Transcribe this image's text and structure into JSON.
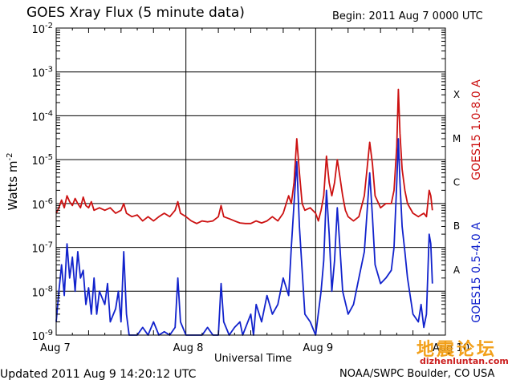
{
  "header": {
    "title": "GOES Xray Flux (5 minute data)",
    "begin": "Begin:  2011 Aug 7 0000 UTC"
  },
  "footer": {
    "updated": "Updated 2011 Aug  9 14:20:12 UTC",
    "source": "NOAA/SWPC Boulder, CO USA"
  },
  "watermark": {
    "chinese": "地震论坛",
    "url": "dizhenluntan.com"
  },
  "chart_data": {
    "type": "line",
    "title": "GOES Xray Flux (5 minute data)",
    "xlabel": "Universal Time",
    "ylabel": "Watts m-2",
    "y_scale": "log",
    "ylim": [
      1e-09,
      0.01
    ],
    "xlim_hours": [
      0,
      72
    ],
    "x_tick_labels": [
      "Aug 7",
      "Aug 8",
      "Aug 9",
      "Aug 10"
    ],
    "y_tick_labels": [
      {
        "base": "10",
        "exp": "-9"
      },
      {
        "base": "10",
        "exp": "-8"
      },
      {
        "base": "10",
        "exp": "-7"
      },
      {
        "base": "10",
        "exp": "-6"
      },
      {
        "base": "10",
        "exp": "-5"
      },
      {
        "base": "10",
        "exp": "-4"
      },
      {
        "base": "10",
        "exp": "-3"
      },
      {
        "base": "10",
        "exp": "-2"
      }
    ],
    "flare_classes": [
      "A",
      "B",
      "C",
      "M",
      "X"
    ],
    "grid": true,
    "series": [
      {
        "name": "GOES15 1.0-8.0 A",
        "color": "#cc1111",
        "points": [
          [
            0,
            6e-07
          ],
          [
            0.5,
            8e-07
          ],
          [
            1,
            1.2e-06
          ],
          [
            1.5,
            8e-07
          ],
          [
            2,
            1.5e-06
          ],
          [
            2.5,
            1.1e-06
          ],
          [
            3,
            9e-07
          ],
          [
            3.5,
            1.3e-06
          ],
          [
            4,
            1e-06
          ],
          [
            4.5,
            8e-07
          ],
          [
            5,
            1.4e-06
          ],
          [
            5.5,
            9e-07
          ],
          [
            6,
            8e-07
          ],
          [
            6.5,
            1.1e-06
          ],
          [
            7,
            7e-07
          ],
          [
            8,
            8e-07
          ],
          [
            9,
            7e-07
          ],
          [
            10,
            8e-07
          ],
          [
            11,
            6e-07
          ],
          [
            12,
            7e-07
          ],
          [
            12.5,
            1e-06
          ],
          [
            13,
            6e-07
          ],
          [
            14,
            5e-07
          ],
          [
            15,
            5.5e-07
          ],
          [
            16,
            4e-07
          ],
          [
            17,
            5e-07
          ],
          [
            18,
            4e-07
          ],
          [
            19,
            5e-07
          ],
          [
            20,
            6e-07
          ],
          [
            21,
            5e-07
          ],
          [
            22,
            7e-07
          ],
          [
            22.5,
            1.1e-06
          ],
          [
            23,
            6e-07
          ],
          [
            24,
            5e-07
          ],
          [
            25,
            4e-07
          ],
          [
            26,
            3.5e-07
          ],
          [
            27,
            4e-07
          ],
          [
            28,
            3.8e-07
          ],
          [
            29,
            4e-07
          ],
          [
            30,
            5e-07
          ],
          [
            30.5,
            9e-07
          ],
          [
            31,
            5e-07
          ],
          [
            32,
            4.5e-07
          ],
          [
            33,
            4e-07
          ],
          [
            34,
            3.6e-07
          ],
          [
            35,
            3.5e-07
          ],
          [
            36,
            3.5e-07
          ],
          [
            37,
            4e-07
          ],
          [
            38,
            3.6e-07
          ],
          [
            39,
            4e-07
          ],
          [
            40,
            5e-07
          ],
          [
            41,
            4e-07
          ],
          [
            42,
            6e-07
          ],
          [
            43,
            1.5e-06
          ],
          [
            43.5,
            1e-06
          ],
          [
            44,
            3e-06
          ],
          [
            44.5,
            3e-05
          ],
          [
            45,
            5e-06
          ],
          [
            45.5,
            1e-06
          ],
          [
            46,
            7e-07
          ],
          [
            47,
            8e-07
          ],
          [
            48,
            6e-07
          ],
          [
            48.5,
            4e-07
          ],
          [
            49,
            7e-07
          ],
          [
            49.5,
            1.5e-06
          ],
          [
            50,
            1.2e-05
          ],
          [
            50.5,
            3e-06
          ],
          [
            51,
            1.5e-06
          ],
          [
            51.5,
            3e-06
          ],
          [
            52,
            1e-05
          ],
          [
            52.5,
            4e-06
          ],
          [
            53,
            1.5e-06
          ],
          [
            53.5,
            7e-07
          ],
          [
            54,
            5e-07
          ],
          [
            55,
            4e-07
          ],
          [
            56,
            5e-07
          ],
          [
            57,
            1.5e-06
          ],
          [
            57.5,
            6e-06
          ],
          [
            58,
            2.5e-05
          ],
          [
            58.5,
            8e-06
          ],
          [
            59,
            1.5e-06
          ],
          [
            60,
            8e-07
          ],
          [
            61,
            1e-06
          ],
          [
            62,
            1e-06
          ],
          [
            62.5,
            2e-06
          ],
          [
            63,
            2e-05
          ],
          [
            63.3,
            0.0004
          ],
          [
            63.6,
            4e-05
          ],
          [
            64,
            6e-06
          ],
          [
            64.5,
            2e-06
          ],
          [
            65,
            1e-06
          ],
          [
            66,
            6e-07
          ],
          [
            67,
            5e-07
          ],
          [
            68,
            6e-07
          ],
          [
            68.5,
            5e-07
          ],
          [
            69,
            2e-06
          ],
          [
            69.3,
            1.5e-06
          ],
          [
            69.6,
            7e-07
          ]
        ]
      },
      {
        "name": "GOES15 0.5-4.0 A",
        "color": "#1122cc",
        "points": [
          [
            0,
            2e-09
          ],
          [
            0.5,
            1e-08
          ],
          [
            1,
            4e-08
          ],
          [
            1.5,
            8e-09
          ],
          [
            2,
            1.2e-07
          ],
          [
            2.5,
            2e-08
          ],
          [
            3,
            6e-08
          ],
          [
            3.5,
            1e-08
          ],
          [
            4,
            8e-08
          ],
          [
            4.5,
            2e-08
          ],
          [
            5,
            3e-08
          ],
          [
            5.5,
            5e-09
          ],
          [
            6,
            1.2e-08
          ],
          [
            6.5,
            3e-09
          ],
          [
            7,
            2e-08
          ],
          [
            7.5,
            3e-09
          ],
          [
            8,
            1e-08
          ],
          [
            9,
            5e-09
          ],
          [
            9.5,
            1.5e-08
          ],
          [
            10,
            2e-09
          ],
          [
            11,
            4e-09
          ],
          [
            11.5,
            1e-08
          ],
          [
            12,
            2e-09
          ],
          [
            12.5,
            8e-08
          ],
          [
            13,
            3e-09
          ],
          [
            13.5,
            1e-09
          ],
          [
            15,
            1e-09
          ],
          [
            16,
            1.5e-09
          ],
          [
            17,
            1e-09
          ],
          [
            18,
            2e-09
          ],
          [
            19,
            1e-09
          ],
          [
            20,
            1.2e-09
          ],
          [
            21,
            1e-09
          ],
          [
            22,
            1.5e-09
          ],
          [
            22.5,
            2e-08
          ],
          [
            23,
            2e-09
          ],
          [
            24,
            1e-09
          ],
          [
            27,
            1e-09
          ],
          [
            28,
            1.5e-09
          ],
          [
            29,
            1e-09
          ],
          [
            30,
            1e-09
          ],
          [
            30.5,
            1.5e-08
          ],
          [
            31,
            2e-09
          ],
          [
            32,
            1e-09
          ],
          [
            33,
            1.5e-09
          ],
          [
            34,
            2e-09
          ],
          [
            34.5,
            1e-09
          ],
          [
            36,
            3e-09
          ],
          [
            36.5,
            1e-09
          ],
          [
            37,
            5e-09
          ],
          [
            38,
            2e-09
          ],
          [
            39,
            8e-09
          ],
          [
            40,
            3e-09
          ],
          [
            41,
            5e-09
          ],
          [
            42,
            2e-08
          ],
          [
            43,
            8e-09
          ],
          [
            43.5,
            1e-07
          ],
          [
            44,
            1e-06
          ],
          [
            44.5,
            9e-06
          ],
          [
            45,
            3e-07
          ],
          [
            45.5,
            3e-08
          ],
          [
            46,
            3e-09
          ],
          [
            47,
            2e-09
          ],
          [
            48,
            1e-09
          ],
          [
            49,
            1e-08
          ],
          [
            49.5,
            5e-08
          ],
          [
            50,
            2e-06
          ],
          [
            50.5,
            2e-07
          ],
          [
            51,
            1e-08
          ],
          [
            51.5,
            5e-08
          ],
          [
            52,
            8e-07
          ],
          [
            52.5,
            1e-07
          ],
          [
            53,
            1e-08
          ],
          [
            54,
            3e-09
          ],
          [
            55,
            5e-09
          ],
          [
            56,
            2e-08
          ],
          [
            57,
            8e-08
          ],
          [
            57.5,
            6e-07
          ],
          [
            58,
            5e-06
          ],
          [
            58.5,
            5e-07
          ],
          [
            59,
            4e-08
          ],
          [
            60,
            1.5e-08
          ],
          [
            61,
            2e-08
          ],
          [
            62,
            3e-08
          ],
          [
            62.5,
            1e-07
          ],
          [
            63,
            3e-06
          ],
          [
            63.3,
            3e-05
          ],
          [
            63.6,
            3e-06
          ],
          [
            64,
            3e-07
          ],
          [
            64.5,
            8e-08
          ],
          [
            65,
            2e-08
          ],
          [
            66,
            3e-09
          ],
          [
            67,
            2e-09
          ],
          [
            67.5,
            5e-09
          ],
          [
            68,
            1.5e-09
          ],
          [
            68.5,
            3e-09
          ],
          [
            69,
            2e-07
          ],
          [
            69.3,
            1.2e-07
          ],
          [
            69.6,
            1.5e-08
          ]
        ]
      }
    ]
  }
}
